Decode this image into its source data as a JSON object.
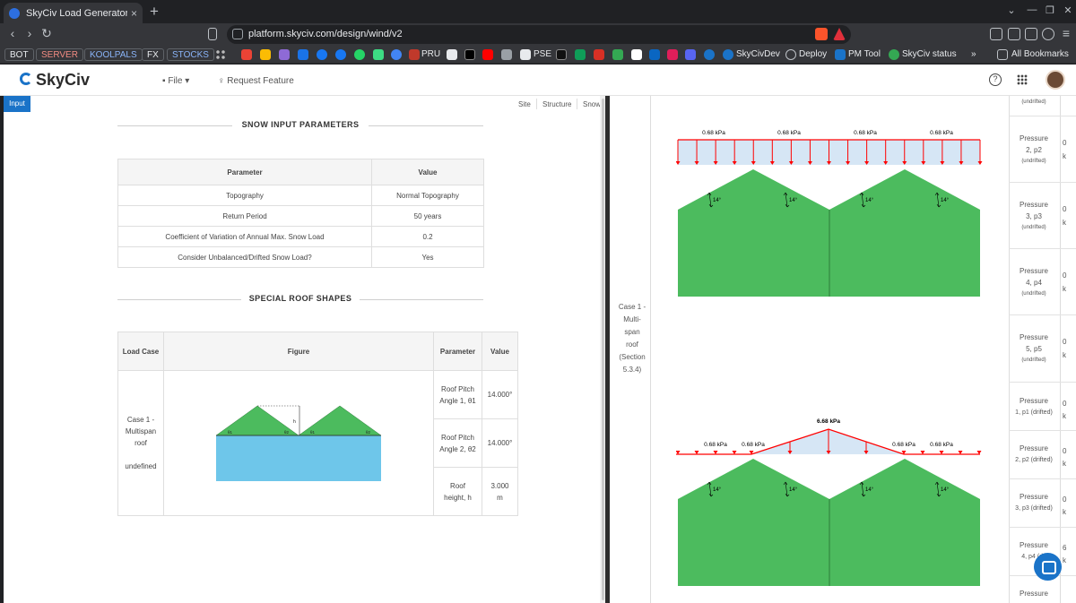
{
  "browser": {
    "tab_title": "SkyCiv Load Generator | S",
    "tab_close": "×",
    "new_tab": "+",
    "url": "platform.skyciv.com/design/wind/v2",
    "bookmarks_chips": [
      "BOT",
      "SERVER",
      "KOOLPALS",
      "FX",
      "STOCKS"
    ],
    "bookmarks_labeled": [
      "PRU",
      "PSE",
      "SkyCivDev",
      "Deploy",
      "PM Tool",
      "SkyCiv status"
    ],
    "more": "»",
    "all_bookmarks": "All Bookmarks",
    "colors": {
      "frame": "#202124",
      "toolbar": "#35363a"
    }
  },
  "app": {
    "logo": "SkyCiv",
    "menu_file": "File",
    "menu_request": "Request Feature",
    "help": "?",
    "accent": "#1a73c8"
  },
  "left": {
    "input_button": "Input",
    "tabs": [
      "Site",
      "Structure",
      "Snow"
    ],
    "section1_title": "SNOW INPUT PARAMETERS",
    "params_table": {
      "headers": [
        "Parameter",
        "Value"
      ],
      "rows": [
        [
          "Topography",
          "Normal Topography"
        ],
        [
          "Return Period",
          "50 years"
        ],
        [
          "Coefficient of Variation of Annual Max. Snow Load",
          "0.2"
        ],
        [
          "Consider Unbalanced/Drifted Snow Load?",
          "Yes"
        ]
      ]
    },
    "section2_title": "SPECIAL ROOF SHAPES",
    "roof_table": {
      "headers": [
        "Load Case",
        "Figure",
        "Parameter",
        "Value"
      ],
      "load_case_lines": [
        "Case 1 -",
        "Multispan",
        "roof"
      ],
      "load_case_extra": "undefined",
      "rows": [
        {
          "param_lines": [
            "Roof Pitch",
            "Angle 1, θ1"
          ],
          "value": "14.000°"
        },
        {
          "param_lines": [
            "Roof Pitch",
            "Angle 2, θ2"
          ],
          "value": "14.000°"
        },
        {
          "param_lines": [
            "Roof",
            "height, h"
          ],
          "value_lines": [
            "3.000",
            "m"
          ]
        }
      ],
      "figure_labels": {
        "height": "h",
        "theta1": "θ1",
        "theta2": "θ2"
      }
    }
  },
  "right": {
    "case_label_lines": [
      "Case 1 -",
      "Multi-",
      "span",
      "roof",
      "(Section",
      "5.3.4)"
    ],
    "diagram1": {
      "loads": [
        "0.68 kPa",
        "0.68 kPa",
        "0.68 kPa",
        "0.68 kPa"
      ],
      "angles": [
        "14°",
        "14°",
        "14°",
        "14°"
      ]
    },
    "diagram2": {
      "peak": "6.68 kPa",
      "loads": [
        "0.68 kPa",
        "0.68 kPa",
        "0.68 kPa",
        "0.68 kPa"
      ],
      "angles": [
        "14°",
        "14°",
        "14°",
        "14°"
      ]
    },
    "top_note": "(undrifted)",
    "pressures": [
      {
        "label": "Pressure",
        "sub": "2, p2",
        "note": "(undrifted)"
      },
      {
        "label": "Pressure",
        "sub": "3, p3",
        "note": "(undrifted)"
      },
      {
        "label": "Pressure",
        "sub": "4, p4",
        "note": "(undrifted)"
      },
      {
        "label": "Pressure",
        "sub": "5, p5",
        "note": "(undrifted)"
      },
      {
        "label": "Pressure",
        "sub": "1, p1 (drifted)",
        "note": ""
      },
      {
        "label": "Pressure",
        "sub": "2, p2 (drifted)",
        "note": ""
      },
      {
        "label": "Pressure",
        "sub": "3, p3 (drifted)",
        "note": ""
      },
      {
        "label": "Pressure",
        "sub": "4, p4 (dri",
        "note": ""
      },
      {
        "label": "Pressure",
        "sub": "",
        "note": ""
      }
    ],
    "clipped_values": [
      "0",
      "k",
      "0",
      "k",
      "0",
      "k",
      "0",
      "k",
      "0",
      "k",
      "0",
      "k",
      "0",
      "k",
      "6",
      "k",
      "0",
      "k"
    ],
    "colors": {
      "roof": "#4cbb5e",
      "load": "#ff0000",
      "load_fill": "#d6e6f5",
      "base": "#6ec6ea"
    }
  }
}
